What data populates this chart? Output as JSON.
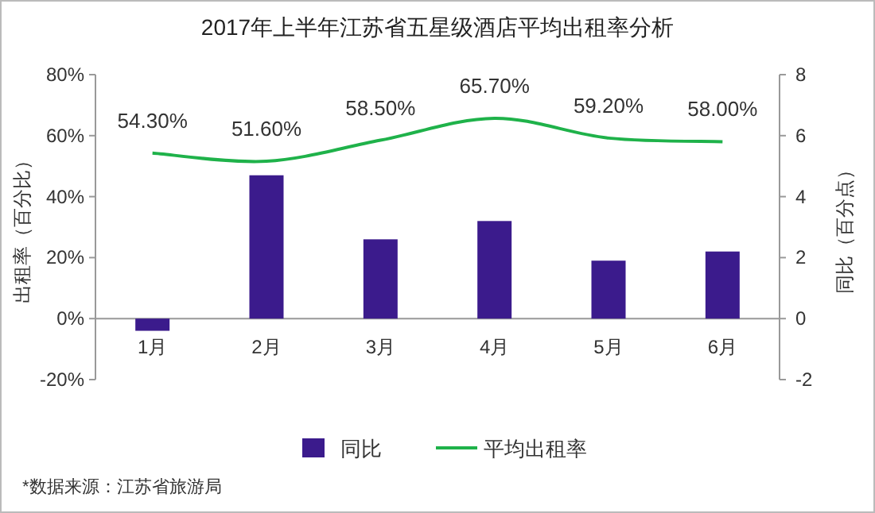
{
  "chart_data": {
    "type": "bar",
    "title": "2017年上半年江苏省五星级酒店平均出租率分析",
    "categories": [
      "1月",
      "2月",
      "3月",
      "4月",
      "5月",
      "6月"
    ],
    "series": [
      {
        "name": "同比",
        "axis": "y2",
        "color": "#3b1b8c",
        "values": [
          -0.4,
          4.7,
          2.6,
          3.2,
          1.9,
          2.2
        ]
      },
      {
        "name": "平均出租率",
        "type": "line",
        "color": "#1fb24a",
        "values": [
          54.3,
          51.6,
          58.5,
          65.7,
          59.2,
          58.0
        ],
        "value_labels": [
          "54.30%",
          "51.60%",
          "58.50%",
          "65.70%",
          "59.20%",
          "58.00%"
        ]
      }
    ],
    "ylabel": "出租率（百分比）",
    "y2label": "同比（百分点）",
    "ylim": [
      -20,
      80
    ],
    "yticks": [
      {
        "value": -20,
        "label": "-20%"
      },
      {
        "value": 0,
        "label": "0%"
      },
      {
        "value": 20,
        "label": "20%"
      },
      {
        "value": 40,
        "label": "40%"
      },
      {
        "value": 60,
        "label": "60%"
      },
      {
        "value": 80,
        "label": "80%"
      }
    ],
    "y2lim": [
      -2,
      8
    ],
    "y2ticks": [
      -2,
      0,
      2,
      4,
      6,
      8
    ],
    "legend": "bottom",
    "annotations": [
      "*数据来源：江苏省旅游局"
    ]
  }
}
